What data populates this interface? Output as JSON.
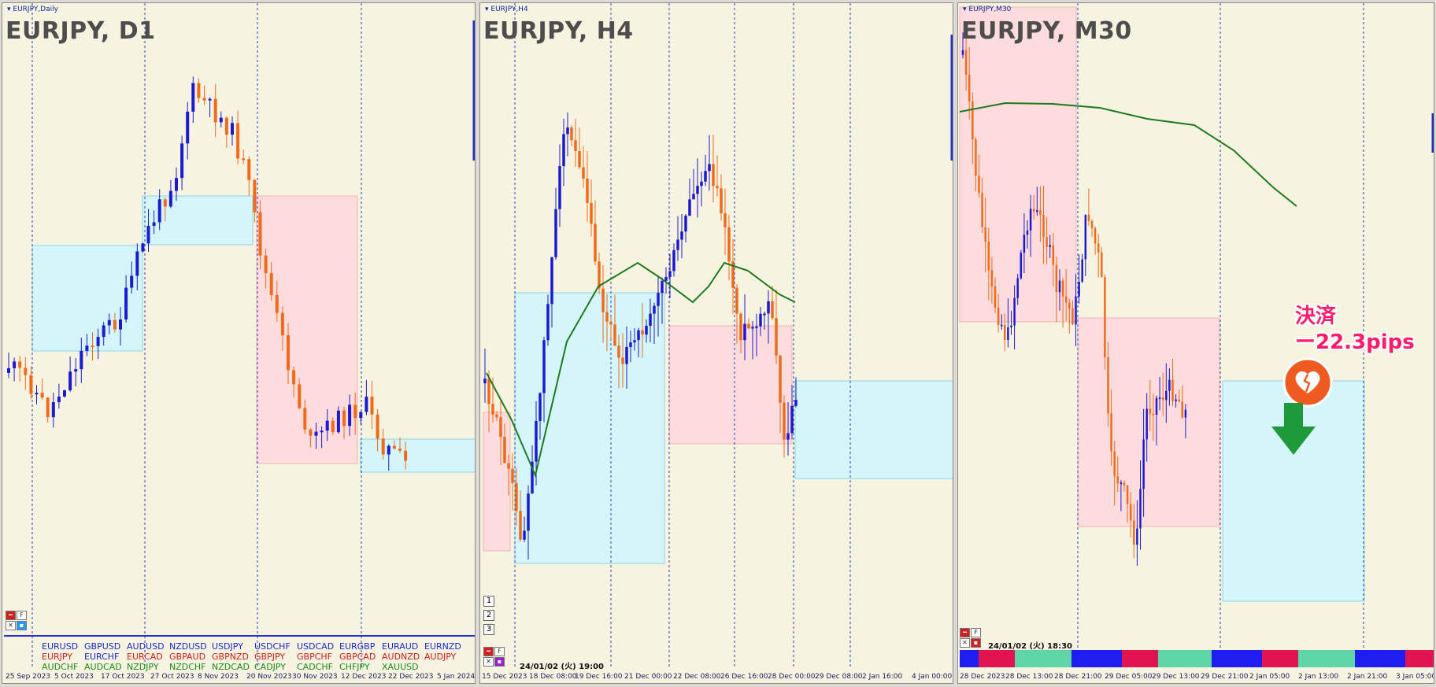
{
  "colors": {
    "background": "#f6f4e0",
    "bull": "#1a1ad0",
    "bear": "#f06a1a",
    "box_blue": "#d4f6fa",
    "box_red": "#fcdcdc",
    "ma": "#1f7a1f",
    "grid": "#2b3fb5",
    "annotation": "#ff1a6a"
  },
  "panels": [
    {
      "window_title": "EURJPY,Daily",
      "title": "EURJPY, D1",
      "time_labels": [
        "25 Sep 2023",
        "5 Oct 2023",
        "17 Oct 2023",
        "27 Oct 2023",
        "8 Nov 2023",
        "20 Nov 2023",
        "30 Nov 2023",
        "12 Dec 2023",
        "22 Dec 2023",
        "5 Jan 2024"
      ],
      "buttons": [
        "F"
      ]
    },
    {
      "window_title": "EURJPY,H4",
      "title": "EURJPY, H4",
      "time_labels": [
        "15 Dec 2023",
        "18 Dec 08:00",
        "19 Dec 16:00",
        "21 Dec 00:00",
        "22 Dec 08:00",
        "26 Dec 16:00",
        "28 Dec 00:00",
        "29 Dec 08:00",
        "2 Jan 16:00",
        "4 Jan 00:00"
      ],
      "buttons": [
        "F"
      ],
      "number_buttons": [
        "1",
        "2",
        "3"
      ],
      "timestamp": "24/01/02 (火) 19:00"
    },
    {
      "window_title": "EURJPY,M30",
      "title": "EURJPY, M30",
      "time_labels": [
        "28 Dec 2023",
        "28 Dec 13:00",
        "28 Dec 21:00",
        "29 Dec 05:00",
        "29 Dec 13:00",
        "29 Dec 21:00",
        "2 Jan 05:00",
        "2 Jan 13:00",
        "2 Jan 21:00",
        "3 Jan 05:00"
      ],
      "buttons": [
        "F"
      ],
      "timestamp": "24/01/02 (火) 18:30",
      "annotation_line1": "決済",
      "annotation_line2": "ー22.3pips"
    }
  ],
  "currency_pairs": [
    {
      "label": "EURUSD",
      "color": "#1a2ad0"
    },
    {
      "label": "GBPUSD",
      "color": "#1a2ad0"
    },
    {
      "label": "AUDUSD",
      "color": "#1a2ad0"
    },
    {
      "label": "NZDUSD",
      "color": "#1a2ad0"
    },
    {
      "label": "USDJPY",
      "color": "#1a2ad0"
    },
    {
      "label": "USDCHF",
      "color": "#1a2ad0"
    },
    {
      "label": "USDCAD",
      "color": "#1a2ad0"
    },
    {
      "label": "EURGBP",
      "color": "#1a2ad0"
    },
    {
      "label": "EURAUD",
      "color": "#1a2ad0"
    },
    {
      "label": "EURNZD",
      "color": "#1a2ad0"
    },
    {
      "label": "EURJPY",
      "color": "#d01a1a"
    },
    {
      "label": "EURCHF",
      "color": "#1a2ad0"
    },
    {
      "label": "EURCAD",
      "color": "#d01a1a"
    },
    {
      "label": "GBPAUD",
      "color": "#d01a1a"
    },
    {
      "label": "GBPNZD",
      "color": "#d01a1a"
    },
    {
      "label": "GBPJPY",
      "color": "#d01a1a"
    },
    {
      "label": "GBPCHF",
      "color": "#d01a1a"
    },
    {
      "label": "GBPCAD",
      "color": "#d01a1a"
    },
    {
      "label": "AUDNZD",
      "color": "#d01a1a"
    },
    {
      "label": "AUDJPY",
      "color": "#d01a1a"
    },
    {
      "label": "AUDCHF",
      "color": "#1a8a1a"
    },
    {
      "label": "AUDCAD",
      "color": "#1a8a1a"
    },
    {
      "label": "NZDJPY",
      "color": "#1a8a1a"
    },
    {
      "label": "NZDCHF",
      "color": "#1a8a1a"
    },
    {
      "label": "NZDCAD",
      "color": "#1a8a1a"
    },
    {
      "label": "CADJPY",
      "color": "#1a8a1a"
    },
    {
      "label": "CADCHF",
      "color": "#1a8a1a"
    },
    {
      "label": "CHFJPY",
      "color": "#1a8a1a"
    },
    {
      "label": "XAUUSD",
      "color": "#1a8a1a"
    },
    {
      "label": "",
      "color": "#1a8a1a"
    }
  ],
  "session_strip_colors": [
    "#1e1ef0",
    "#e01450",
    "#5fd6a8",
    "#1e1ef0",
    "#e01450",
    "#5fd6a8",
    "#1e1ef0",
    "#e01450",
    "#5fd6a8",
    "#1e1ef0",
    "#e01450"
  ],
  "icons": [
    "dropdown-icon",
    "broken-heart-icon",
    "down-arrow-icon",
    "close-icon",
    "minimize-icon"
  ]
}
